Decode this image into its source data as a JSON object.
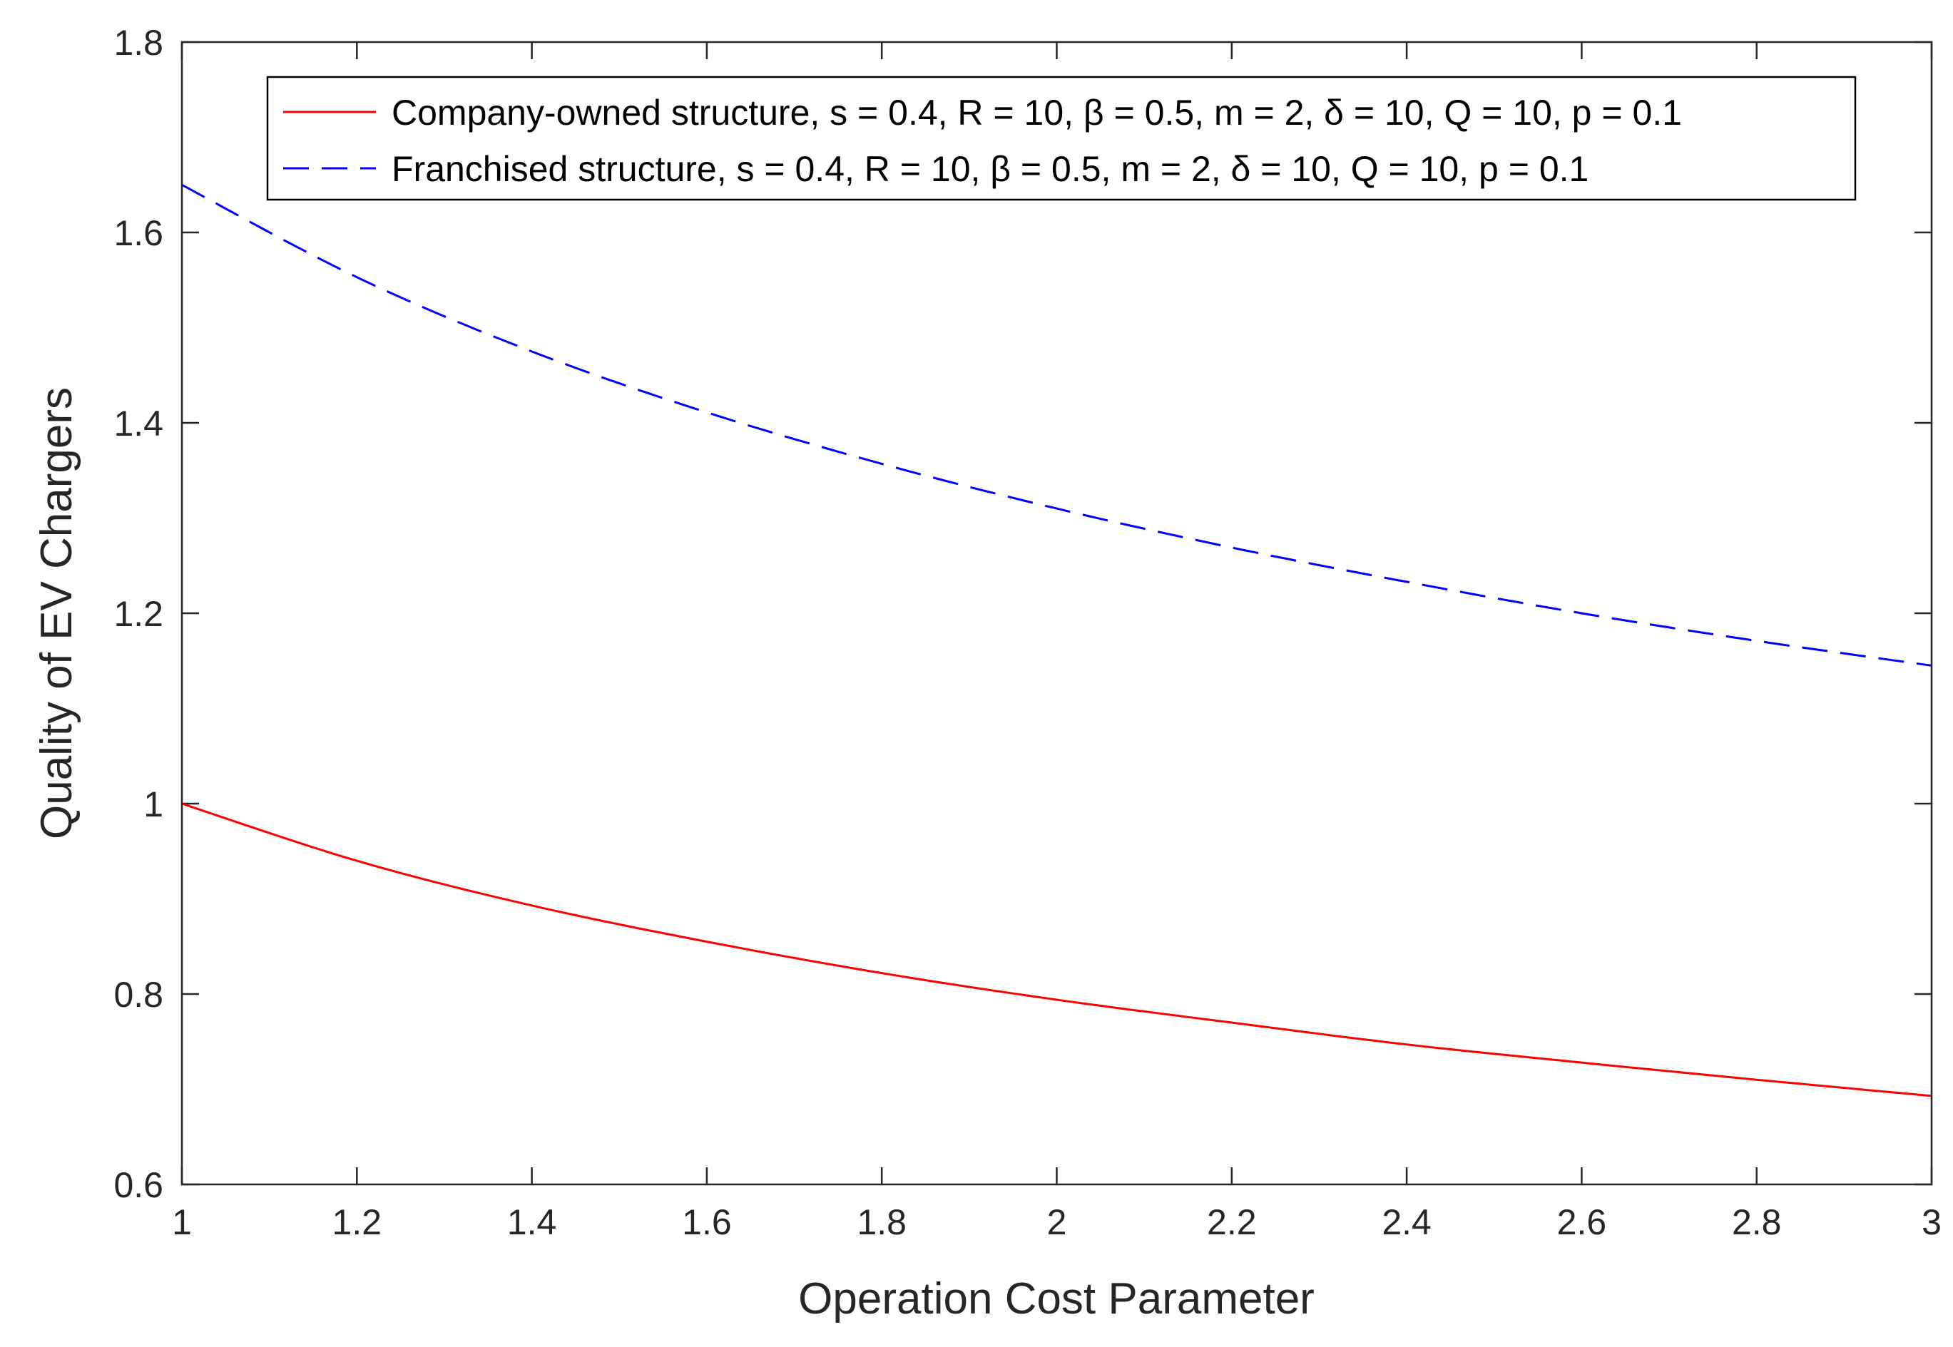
{
  "chart_data": {
    "type": "line",
    "title": "",
    "xlabel": "Operation Cost Parameter",
    "ylabel": "Quality of EV Chargers",
    "xlim": [
      1,
      3
    ],
    "ylim": [
      0.6,
      1.8
    ],
    "xticks": [
      1,
      1.2,
      1.4,
      1.6,
      1.8,
      2,
      2.2,
      2.4,
      2.6,
      2.8,
      3
    ],
    "xtick_labels": [
      "1",
      "1.2",
      "1.4",
      "1.6",
      "1.8",
      "2",
      "2.2",
      "2.4",
      "2.6",
      "2.8",
      "3"
    ],
    "yticks": [
      0.6,
      0.8,
      1.0,
      1.2,
      1.4,
      1.6,
      1.8
    ],
    "ytick_labels": [
      "0.6",
      "0.8",
      "1",
      "1.2",
      "1.4",
      "1.6",
      "1.8"
    ],
    "grid": false,
    "legend_position": "top",
    "series": [
      {
        "name": "Company-owned structure, s = 0.4, R = 10, β = 0.5, m = 2, δ = 10, Q = 10, p = 0.1",
        "color": "#ff0000",
        "style": "solid",
        "x": [
          1.0,
          1.2,
          1.4,
          1.6,
          1.8,
          2.0,
          2.2,
          2.4,
          2.6,
          2.8,
          3.0
        ],
        "y": [
          1.0,
          0.94,
          0.893,
          0.855,
          0.822,
          0.794,
          0.77,
          0.747,
          0.728,
          0.71,
          0.693
        ]
      },
      {
        "name": "Franchised structure, s = 0.4, R = 10, β = 0.5, m = 2, δ = 10, Q = 10, p = 0.1",
        "color": "#0000ff",
        "style": "dashed",
        "x": [
          1.0,
          1.2,
          1.4,
          1.6,
          1.8,
          2.0,
          2.2,
          2.4,
          2.6,
          2.8,
          3.0
        ],
        "y": [
          1.65,
          1.553,
          1.475,
          1.411,
          1.357,
          1.31,
          1.269,
          1.233,
          1.2,
          1.171,
          1.145
        ]
      }
    ]
  }
}
